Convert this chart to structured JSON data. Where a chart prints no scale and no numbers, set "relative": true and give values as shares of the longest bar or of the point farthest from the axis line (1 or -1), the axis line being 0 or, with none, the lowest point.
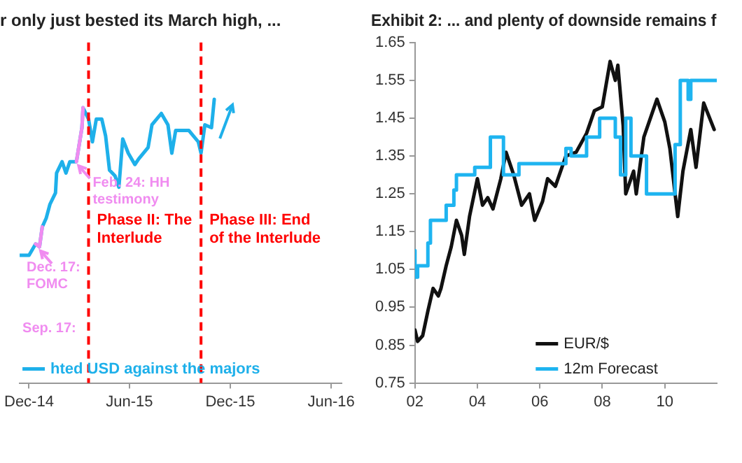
{
  "chart_data": [
    {
      "type": "line",
      "title": "r only just bested its March high, ...",
      "relative": true,
      "marker": "none",
      "legend": "bottom left",
      "series": [
        {
          "name": "hted USD against the majors",
          "color": "#1eb0ea",
          "x": [
            "2014-11-14",
            "2014-12-01",
            "2014-12-13",
            "2014-12-20",
            "2014-12-25",
            "2015-01-01",
            "2015-01-08",
            "2015-01-18",
            "2015-01-20",
            "2015-01-30",
            "2015-02-06",
            "2015-02-13",
            "2015-02-25",
            "2015-03-07",
            "2015-03-09",
            "2015-03-19",
            "2015-03-26",
            "2015-04-02",
            "2015-04-12",
            "2015-04-19",
            "2015-04-26",
            "2015-05-06",
            "2015-05-13",
            "2015-05-20",
            "2015-05-30",
            "2015-06-11",
            "2015-06-18",
            "2015-07-05",
            "2015-07-12",
            "2015-07-29",
            "2015-08-10",
            "2015-08-17",
            "2015-08-24",
            "2015-09-05",
            "2015-09-17",
            "2015-10-04",
            "2015-10-09",
            "2015-10-16",
            "2015-10-28",
            "2015-11-02"
          ],
          "values": [
            0.45,
            0.45,
            0.49,
            0.48,
            0.55,
            0.58,
            0.63,
            0.67,
            0.74,
            0.78,
            0.74,
            0.78,
            0.78,
            0.9,
            0.97,
            0.93,
            0.85,
            0.93,
            0.93,
            0.87,
            0.75,
            0.73,
            0.69,
            0.86,
            0.81,
            0.77,
            0.79,
            0.83,
            0.91,
            0.95,
            0.91,
            0.81,
            0.89,
            0.89,
            0.89,
            0.85,
            0.81,
            0.91,
            0.9,
            1
          ]
        },
        {
          "color": "#f08cf0",
          "x": [
            "2014-12-13",
            "2014-12-20",
            "2014-12-25",
            "2015-01-15",
            "2015-02-25",
            "2015-03-07",
            "2015-03-09"
          ],
          "values": [
            0.49,
            0.48,
            0.55,
            null,
            0.78,
            0.9,
            0.97
          ]
        }
      ],
      "xlim": [
        "2014-11-14",
        "2016-06-20"
      ],
      "xticks": [
        {
          "value": "2014-12",
          "label": "Dec-14"
        },
        {
          "value": "2015-06",
          "label": "Jun-15"
        },
        {
          "value": "2015-12",
          "label": "Dec-15"
        },
        {
          "value": "2016-06",
          "label": "Jun-16"
        }
      ],
      "ref_lines": [
        {
          "axis": "x",
          "value": "2015-03-19",
          "label": "Phase II: The Interlude",
          "color": "#ff0000",
          "line_style": "dashed"
        },
        {
          "axis": "x",
          "value": "2015-10-09",
          "label": "Phase III: End of the Interlude",
          "color": "#ff0000",
          "line_style": "dashed"
        }
      ],
      "annotations": [
        {
          "text": "Feb. 24: HH testimony",
          "x": "2015-02-24",
          "y": 0.78
        },
        {
          "text": "Dec. 17: FOMC",
          "x": "2014-12-17",
          "y": 0.48
        },
        "Sep. 17:"
      ]
    },
    {
      "type": "line",
      "title": "Exhibit 2: ... and plenty of downside remains f",
      "marker": "none",
      "legend": "bottom",
      "series": [
        {
          "name": "EUR/$",
          "color": "#111111",
          "x": [
            "2002-01",
            "2002-02",
            "2002-04",
            "2002-06",
            "2002-08",
            "2002-10",
            "2002-11",
            "2003-01",
            "2003-03",
            "2003-05",
            "2003-07",
            "2003-08",
            "2003-10",
            "2004-01",
            "2004-03",
            "2004-05",
            "2004-07",
            "2004-10",
            "2004-12",
            "2005-03",
            "2005-06",
            "2005-09",
            "2005-11",
            "2006-02",
            "2006-04",
            "2006-07",
            "2006-11",
            "2007-03",
            "2007-07",
            "2007-10",
            "2008-01",
            "2008-04",
            "2008-06",
            "2008-07",
            "2008-09",
            "2008-10",
            "2009-01",
            "2009-02",
            "2009-05",
            "2009-10",
            "2010-01",
            "2010-03",
            "2010-06",
            "2010-08",
            "2010-11",
            "2011-01",
            "2011-04",
            "2011-08"
          ],
          "values": [
            0.89,
            0.86,
            0.875,
            0.94,
            1.0,
            0.98,
            1.0,
            1.06,
            1.11,
            1.18,
            1.14,
            1.09,
            1.19,
            1.29,
            1.22,
            1.24,
            1.21,
            1.29,
            1.36,
            1.3,
            1.22,
            1.25,
            1.18,
            1.23,
            1.29,
            1.27,
            1.35,
            1.36,
            1.41,
            1.47,
            1.48,
            1.6,
            1.55,
            1.59,
            1.43,
            1.25,
            1.31,
            1.25,
            1.4,
            1.5,
            1.44,
            1.37,
            1.19,
            1.31,
            1.42,
            1.32,
            1.49,
            1.42
          ]
        },
        {
          "name": "12m Forecast",
          "type": "step",
          "color": "#1eb4f0",
          "x": [
            "2002-01",
            "2002-02",
            "2002-06",
            "2002-07",
            "2003-01",
            "2003-04",
            "2003-05",
            "2003-12",
            "2004-06",
            "2004-11",
            "2005-05",
            "2006-11",
            "2007-01",
            "2007-07",
            "2007-12",
            "2008-06",
            "2008-08",
            "2008-10",
            "2008-12",
            "2009-06",
            "2010-05",
            "2010-07",
            "2010-10",
            "2010-11",
            "2011-05",
            "2011-09"
          ],
          "values": [
            1.1,
            1.03,
            1.06,
            1.12,
            1.18,
            1.22,
            1.26,
            1.3,
            1.32,
            1.4,
            1.3,
            1.33,
            1.37,
            1.35,
            1.4,
            1.45,
            1.4,
            1.3,
            1.45,
            1.35,
            1.25,
            1.38,
            1.55,
            1.5,
            1.55,
            1.55
          ]
        }
      ],
      "xlim": [
        "2002-01",
        "2011-09"
      ],
      "xticks": [
        {
          "value": "2002",
          "label": "02"
        },
        {
          "value": "2004",
          "label": "04"
        },
        {
          "value": "2006",
          "label": "06"
        },
        {
          "value": "2008",
          "label": "08"
        },
        {
          "value": "2010",
          "label": "10"
        }
      ],
      "ylim": [
        0.75,
        1.65
      ],
      "yticks": [
        {
          "value": 0.75,
          "label": "0.75"
        },
        {
          "value": 0.85,
          "label": "0.85"
        },
        {
          "value": 0.95,
          "label": "0.95"
        },
        {
          "value": 1.05,
          "label": "1.05"
        },
        {
          "value": 1.15,
          "label": "1.15"
        },
        {
          "value": 1.25,
          "label": "1.25"
        },
        {
          "value": 1.35,
          "label": "1.35"
        },
        {
          "value": 1.45,
          "label": "1.45"
        },
        {
          "value": 1.55,
          "label": "1.55"
        },
        {
          "value": 1.65,
          "label": "1.65"
        }
      ]
    }
  ]
}
